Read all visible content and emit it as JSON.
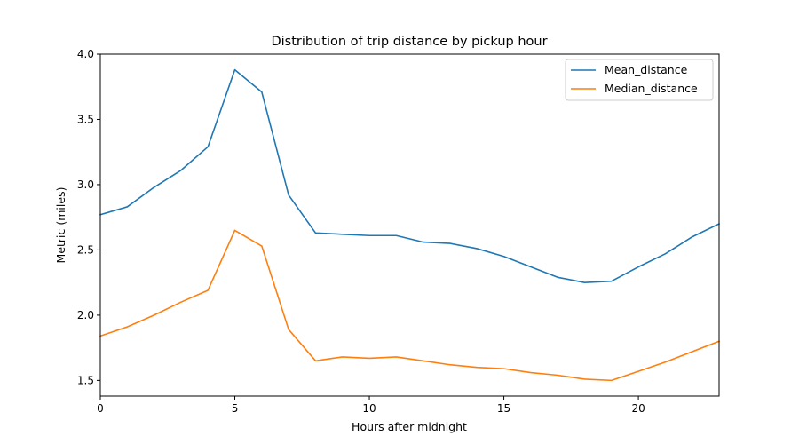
{
  "chart_data": {
    "type": "line",
    "title": "Distribution of trip distance by pickup hour",
    "xlabel": "Hours after midnight",
    "ylabel": "Metric (miles)",
    "xlim": [
      0,
      23
    ],
    "ylim": [
      1.38,
      4.0
    ],
    "xticks": [
      0,
      5,
      10,
      15,
      20
    ],
    "xtick_labels": [
      "0",
      "5",
      "10",
      "15",
      "20"
    ],
    "yticks": [
      1.5,
      2.0,
      2.5,
      3.0,
      3.5,
      4.0
    ],
    "ytick_labels": [
      "1.5",
      "2.0",
      "2.5",
      "3.0",
      "3.5",
      "4.0"
    ],
    "grid": false,
    "legend_position": "top-right",
    "x": [
      0,
      1,
      2,
      3,
      4,
      5,
      6,
      7,
      8,
      9,
      10,
      11,
      12,
      13,
      14,
      15,
      16,
      17,
      18,
      19,
      20,
      21,
      22,
      23
    ],
    "series": [
      {
        "name": "Mean_distance",
        "color": "#1f77b4",
        "values": [
          2.77,
          2.83,
          2.98,
          3.11,
          3.29,
          3.88,
          3.71,
          2.92,
          2.63,
          2.62,
          2.61,
          2.61,
          2.56,
          2.55,
          2.51,
          2.45,
          2.37,
          2.29,
          2.25,
          2.26,
          2.37,
          2.47,
          2.6,
          2.7
        ]
      },
      {
        "name": "Median_distance",
        "color": "#ff7f0e",
        "values": [
          1.84,
          1.91,
          2.0,
          2.1,
          2.19,
          2.65,
          2.53,
          1.89,
          1.65,
          1.68,
          1.67,
          1.68,
          1.65,
          1.62,
          1.6,
          1.59,
          1.56,
          1.54,
          1.51,
          1.5,
          1.57,
          1.64,
          1.72,
          1.8
        ]
      }
    ]
  }
}
